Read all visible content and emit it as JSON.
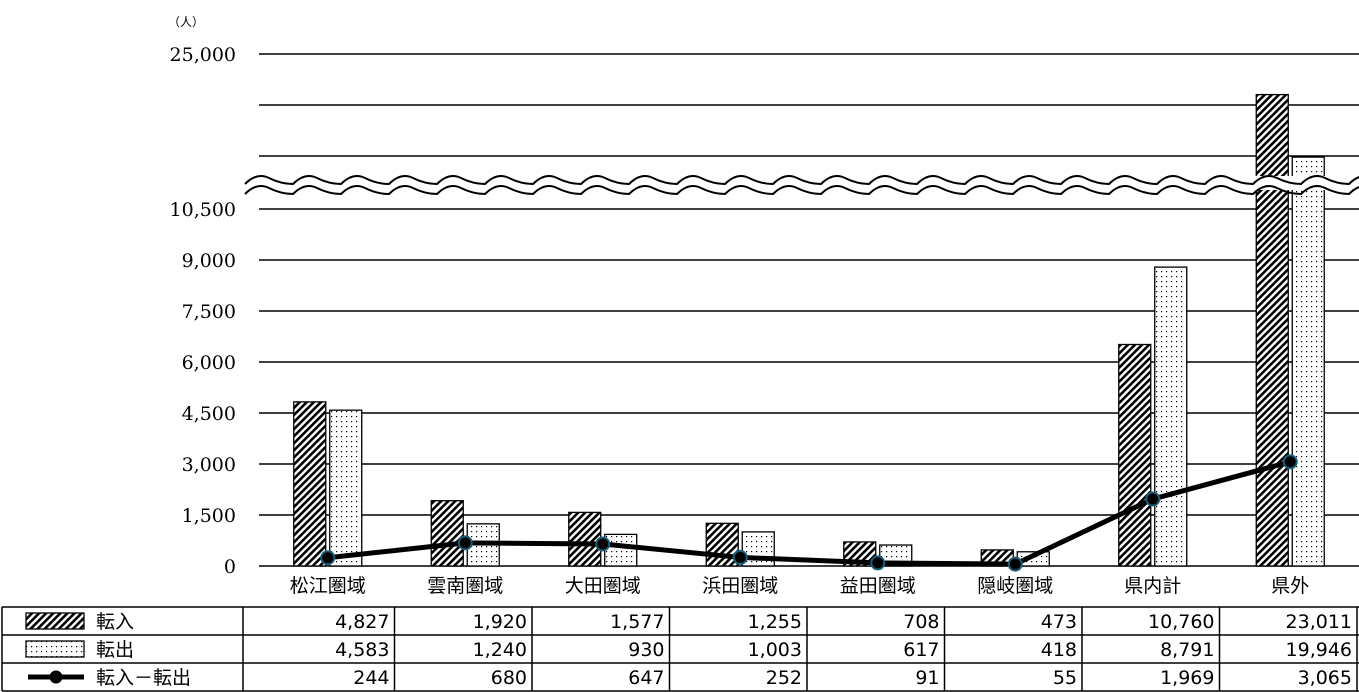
{
  "chart_data": {
    "type": "bar",
    "unit_label": "（人）",
    "y_ticks": [
      "0",
      "1,500",
      "3,000",
      "4,500",
      "6,000",
      "7,500",
      "9,000",
      "10,500",
      "25,000"
    ],
    "y_tick_values": [
      0,
      1500,
      3000,
      4500,
      6000,
      7500,
      9000,
      10500,
      25000
    ],
    "axis_break": {
      "lower_max": 10500,
      "upper_min": 20000,
      "upper_max": 25000
    },
    "categories": [
      "松江圏域",
      "雲南圏域",
      "大田圏域",
      "浜田圏域",
      "益田圏域",
      "隠岐圏域",
      "県内計",
      "県外"
    ],
    "series": [
      {
        "name": "転入",
        "type": "bar",
        "pattern": "diagonal-hatch",
        "values": [
          4827,
          1920,
          1577,
          1255,
          708,
          473,
          10760,
          23011
        ],
        "labels": [
          "4,827",
          "1,920",
          "1,577",
          "1,255",
          "708",
          "473",
          "10,760",
          "23,011"
        ]
      },
      {
        "name": "転出",
        "type": "bar",
        "pattern": "dots",
        "values": [
          4583,
          1240,
          930,
          1003,
          617,
          418,
          8791,
          19946
        ],
        "labels": [
          "4,583",
          "1,240",
          "930",
          "1,003",
          "617",
          "418",
          "8,791",
          "19,946"
        ]
      },
      {
        "name": "転入－転出",
        "type": "line",
        "color": "#000000",
        "marker_color": "#1a5e7a",
        "values": [
          244,
          680,
          647,
          252,
          91,
          55,
          1969,
          3065
        ],
        "labels": [
          "244",
          "680",
          "647",
          "252",
          "91",
          "55",
          "1,969",
          "3,065"
        ]
      }
    ],
    "grid": true,
    "legend": "data-table"
  }
}
